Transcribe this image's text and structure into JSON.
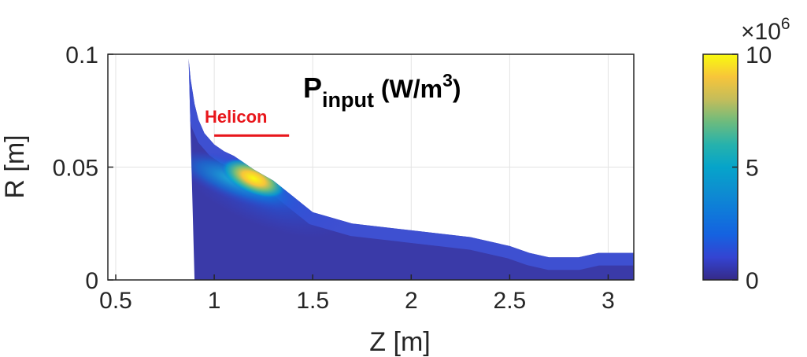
{
  "chart_data": {
    "type": "heatmap",
    "title": {
      "main": "P",
      "subscript": "input",
      "unit_prefix": " (W/m",
      "unit_superscript": "3",
      "unit_suffix": ")"
    },
    "xlabel": "Z [m]",
    "ylabel": "R [m]",
    "xlim": [
      0.46,
      3.13
    ],
    "ylim": [
      0,
      0.1
    ],
    "xticks": [
      {
        "value": 0.5,
        "label": "0.5"
      },
      {
        "value": 1,
        "label": "1"
      },
      {
        "value": 1.5,
        "label": "1.5"
      },
      {
        "value": 2,
        "label": "2"
      },
      {
        "value": 2.5,
        "label": "2.5"
      },
      {
        "value": 3,
        "label": "3"
      }
    ],
    "yticks": [
      {
        "value": 0,
        "label": "0"
      },
      {
        "value": 0.05,
        "label": "0.05"
      },
      {
        "value": 0.1,
        "label": "0.1"
      }
    ],
    "grid": true,
    "colorbar": {
      "range": [
        0,
        10
      ],
      "ticks": [
        {
          "value": 0,
          "label": "0"
        },
        {
          "value": 5,
          "label": "5"
        },
        {
          "value": 10,
          "label": "10"
        }
      ],
      "exponent_base": "×10",
      "exponent_power": "6",
      "colormap": "parula"
    },
    "annotation": {
      "text": "Helicon",
      "z_start": 1.0,
      "z_end": 1.38,
      "r": 0.064,
      "color": "#e8161b"
    },
    "boundary_top": [
      [
        0.87,
        0.098
      ],
      [
        0.88,
        0.089
      ],
      [
        0.9,
        0.078
      ],
      [
        0.92,
        0.071
      ],
      [
        0.95,
        0.065
      ],
      [
        1.0,
        0.06
      ],
      [
        1.05,
        0.057
      ],
      [
        1.1,
        0.055
      ],
      [
        1.15,
        0.052
      ],
      [
        1.2,
        0.049
      ],
      [
        1.3,
        0.044
      ],
      [
        1.4,
        0.037
      ],
      [
        1.5,
        0.03
      ],
      [
        1.7,
        0.025
      ],
      [
        2.0,
        0.022
      ],
      [
        2.3,
        0.019
      ],
      [
        2.5,
        0.015
      ],
      [
        2.6,
        0.012
      ],
      [
        2.7,
        0.01
      ],
      [
        2.85,
        0.01
      ],
      [
        2.95,
        0.012
      ],
      [
        3.13,
        0.012
      ]
    ],
    "boundary_bottom_left": [
      [
        0.9,
        0.0
      ],
      [
        0.87,
        0.098
      ]
    ],
    "power_deposition_peak": {
      "z": 1.2,
      "r": 0.045,
      "value_x1e6": 10
    }
  }
}
